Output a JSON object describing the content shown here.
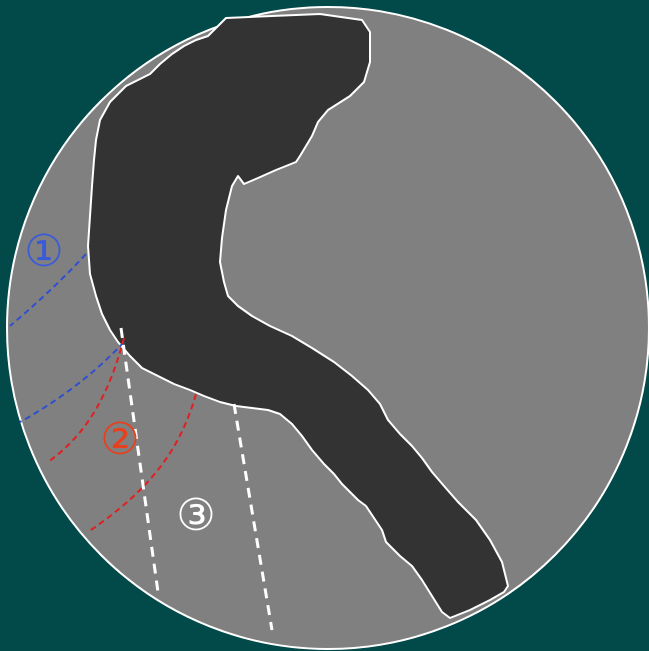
{
  "colors": {
    "background": "#024949",
    "disc_fill": "#808080",
    "disc_stroke": "#ffffff",
    "shape_fill": "#333333",
    "shape_stroke": "#ffffff",
    "zone1": "#3a5bd9",
    "zone2": "#e8401c",
    "zone3": "#ffffff"
  },
  "labels": {
    "zone1": "①",
    "zone2": "②",
    "zone3": "③"
  }
}
